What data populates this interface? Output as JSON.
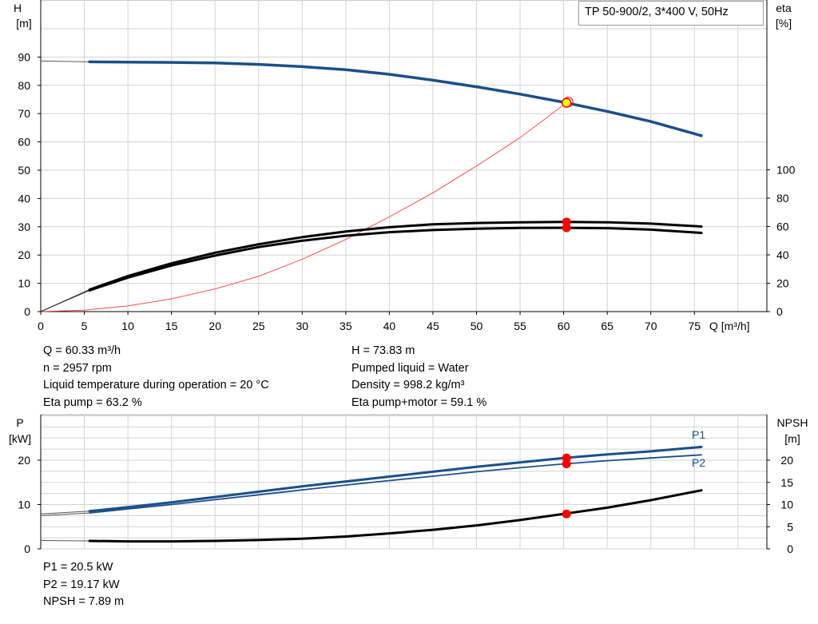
{
  "title": "TP 50-900/2, 3*400 V, 50Hz",
  "top_chart": {
    "left_axis_label": [
      "H",
      "[m]"
    ],
    "right_axis_label": [
      "eta",
      "[%]"
    ],
    "x_axis_label": "Q [m³/h]",
    "h_ticks": [
      0,
      10,
      20,
      30,
      40,
      50,
      60,
      70,
      80,
      90
    ],
    "eta_ticks": [
      0,
      20,
      40,
      60,
      80,
      100
    ],
    "q_ticks": [
      0,
      5,
      10,
      15,
      20,
      25,
      30,
      35,
      40,
      45,
      50,
      55,
      60,
      65,
      70,
      75
    ]
  },
  "operating_point_info": {
    "left": [
      "Q = 60.33 m³/h",
      "n = 2957 rpm",
      "Liquid temperature during operation = 20 °C",
      "Eta pump = 63.2 %"
    ],
    "right": [
      "H = 73.83 m",
      "Pumped liquid = Water",
      "Density = 998.2 kg/m³",
      "Eta pump+motor = 59.1 %"
    ]
  },
  "bottom_chart": {
    "left_axis_label": [
      "P",
      "[kW]"
    ],
    "right_axis_label": [
      "NPSH",
      "[m]"
    ],
    "p_ticks": [
      0,
      10,
      20
    ],
    "npsh_ticks": [
      0,
      5,
      10,
      15,
      20
    ],
    "series_labels": [
      "P1",
      "P2"
    ]
  },
  "power_info": [
    "P1 = 20.5 kW",
    "P2 = 19.17 kW",
    "NPSH = 7.89 m"
  ],
  "colors": {
    "head_curve": "#1b4f8a",
    "efficiency_curve": "#000000",
    "system_curve": "#ff3b3b",
    "operating_point": "#ff0000",
    "duty_marker": "#ffff00",
    "grid": "#d3d3d3"
  },
  "chart_data": [
    {
      "type": "line",
      "title": "",
      "xlabel": "Q [m³/h]",
      "ylabel": "H [m]",
      "y2label": "eta [%]",
      "xlim": [
        0,
        80
      ],
      "ylim": [
        0,
        100
      ],
      "y2lim": [
        0,
        100
      ],
      "grid": true,
      "series": [
        {
          "axis": "left",
          "color": "#1b4f8a",
          "points": [
            [
              0,
              88.6
            ],
            [
              5.6,
              88.3
            ],
            [
              10,
              88.2
            ],
            [
              15,
              88.1
            ],
            [
              20,
              87.9
            ],
            [
              25,
              87.4
            ],
            [
              30,
              86.6
            ],
            [
              35,
              85.5
            ],
            [
              40,
              83.9
            ],
            [
              45,
              81.8
            ],
            [
              50,
              79.5
            ],
            [
              55,
              76.9
            ],
            [
              60,
              74.0
            ],
            [
              65,
              70.8
            ],
            [
              70,
              67.2
            ],
            [
              75.8,
              62.2
            ]
          ]
        },
        {
          "axis": "right",
          "color": "#000000",
          "points": [
            [
              0,
              0
            ],
            [
              5.6,
              15.5
            ],
            [
              10,
              25
            ],
            [
              15,
              34
            ],
            [
              20,
              41.5
            ],
            [
              25,
              47.5
            ],
            [
              30,
              52.5
            ],
            [
              35,
              56.5
            ],
            [
              40,
              59.5
            ],
            [
              45,
              61.5
            ],
            [
              50,
              62.5
            ],
            [
              55,
              63
            ],
            [
              60,
              63.2
            ],
            [
              65,
              63
            ],
            [
              70,
              62
            ],
            [
              75.8,
              60
            ]
          ]
        },
        {
          "axis": "right",
          "color": "#000000",
          "points": [
            [
              0,
              0
            ],
            [
              5.6,
              15
            ],
            [
              10,
              24
            ],
            [
              15,
              32.5
            ],
            [
              20,
              39.5
            ],
            [
              25,
              45.5
            ],
            [
              30,
              50
            ],
            [
              35,
              53.5
            ],
            [
              40,
              56
            ],
            [
              45,
              57.5
            ],
            [
              50,
              58.5
            ],
            [
              55,
              59
            ],
            [
              60,
              59.1
            ],
            [
              65,
              58.8
            ],
            [
              70,
              57.8
            ],
            [
              75.8,
              55.5
            ]
          ]
        },
        {
          "axis": "left",
          "color": "#ff3b3b",
          "points": [
            [
              0,
              0
            ],
            [
              5,
              0.5
            ],
            [
              10,
              2
            ],
            [
              15,
              4.5
            ],
            [
              20,
              8
            ],
            [
              25,
              12.5
            ],
            [
              30,
              18.5
            ],
            [
              35,
              25.5
            ],
            [
              40,
              33.5
            ],
            [
              45,
              42
            ],
            [
              50,
              51.5
            ],
            [
              55,
              61.5
            ],
            [
              60.33,
              73.83
            ]
          ]
        }
      ],
      "operating_point": {
        "Q": 60.33,
        "H": 73.83,
        "eta_pump": 63.2,
        "eta_total": 59.1
      }
    },
    {
      "type": "line",
      "title": "",
      "xlabel": "Q [m³/h]",
      "ylabel": "P [kW]",
      "y2label": "NPSH [m]",
      "xlim": [
        0,
        80
      ],
      "ylim": [
        0,
        25
      ],
      "y2lim": [
        0,
        25
      ],
      "grid": true,
      "series": [
        {
          "name": "P1",
          "axis": "left",
          "color": "#1b4f8a",
          "points": [
            [
              0,
              7.9
            ],
            [
              5.6,
              8.5
            ],
            [
              10,
              9.4
            ],
            [
              15,
              10.5
            ],
            [
              20,
              11.7
            ],
            [
              25,
              12.9
            ],
            [
              30,
              14.1
            ],
            [
              35,
              15.2
            ],
            [
              40,
              16.3
            ],
            [
              45,
              17.4
            ],
            [
              50,
              18.5
            ],
            [
              55,
              19.5
            ],
            [
              60,
              20.5
            ],
            [
              65,
              21.3
            ],
            [
              70,
              22.0
            ],
            [
              75.8,
              23.0
            ]
          ]
        },
        {
          "name": "P2",
          "axis": "left",
          "color": "#1b4f8a",
          "points": [
            [
              0,
              7.5
            ],
            [
              5.6,
              8.1
            ],
            [
              10,
              9.0
            ],
            [
              15,
              10.0
            ],
            [
              20,
              11.1
            ],
            [
              25,
              12.2
            ],
            [
              30,
              13.3
            ],
            [
              35,
              14.4
            ],
            [
              40,
              15.4
            ],
            [
              45,
              16.4
            ],
            [
              50,
              17.4
            ],
            [
              55,
              18.3
            ],
            [
              60,
              19.17
            ],
            [
              65,
              19.9
            ],
            [
              70,
              20.5
            ],
            [
              75.8,
              21.2
            ]
          ]
        },
        {
          "name": "NPSH",
          "axis": "right",
          "color": "#000000",
          "points": [
            [
              0,
              1.9
            ],
            [
              5.6,
              1.8
            ],
            [
              10,
              1.7
            ],
            [
              15,
              1.7
            ],
            [
              20,
              1.8
            ],
            [
              25,
              2.0
            ],
            [
              30,
              2.3
            ],
            [
              35,
              2.8
            ],
            [
              40,
              3.5
            ],
            [
              45,
              4.3
            ],
            [
              50,
              5.3
            ],
            [
              55,
              6.5
            ],
            [
              60,
              7.89
            ],
            [
              65,
              9.3
            ],
            [
              70,
              11.0
            ],
            [
              75.8,
              13.2
            ]
          ]
        }
      ],
      "operating_point": {
        "Q": 60.33,
        "P1": 20.5,
        "P2": 19.17,
        "NPSH": 7.89
      }
    }
  ]
}
